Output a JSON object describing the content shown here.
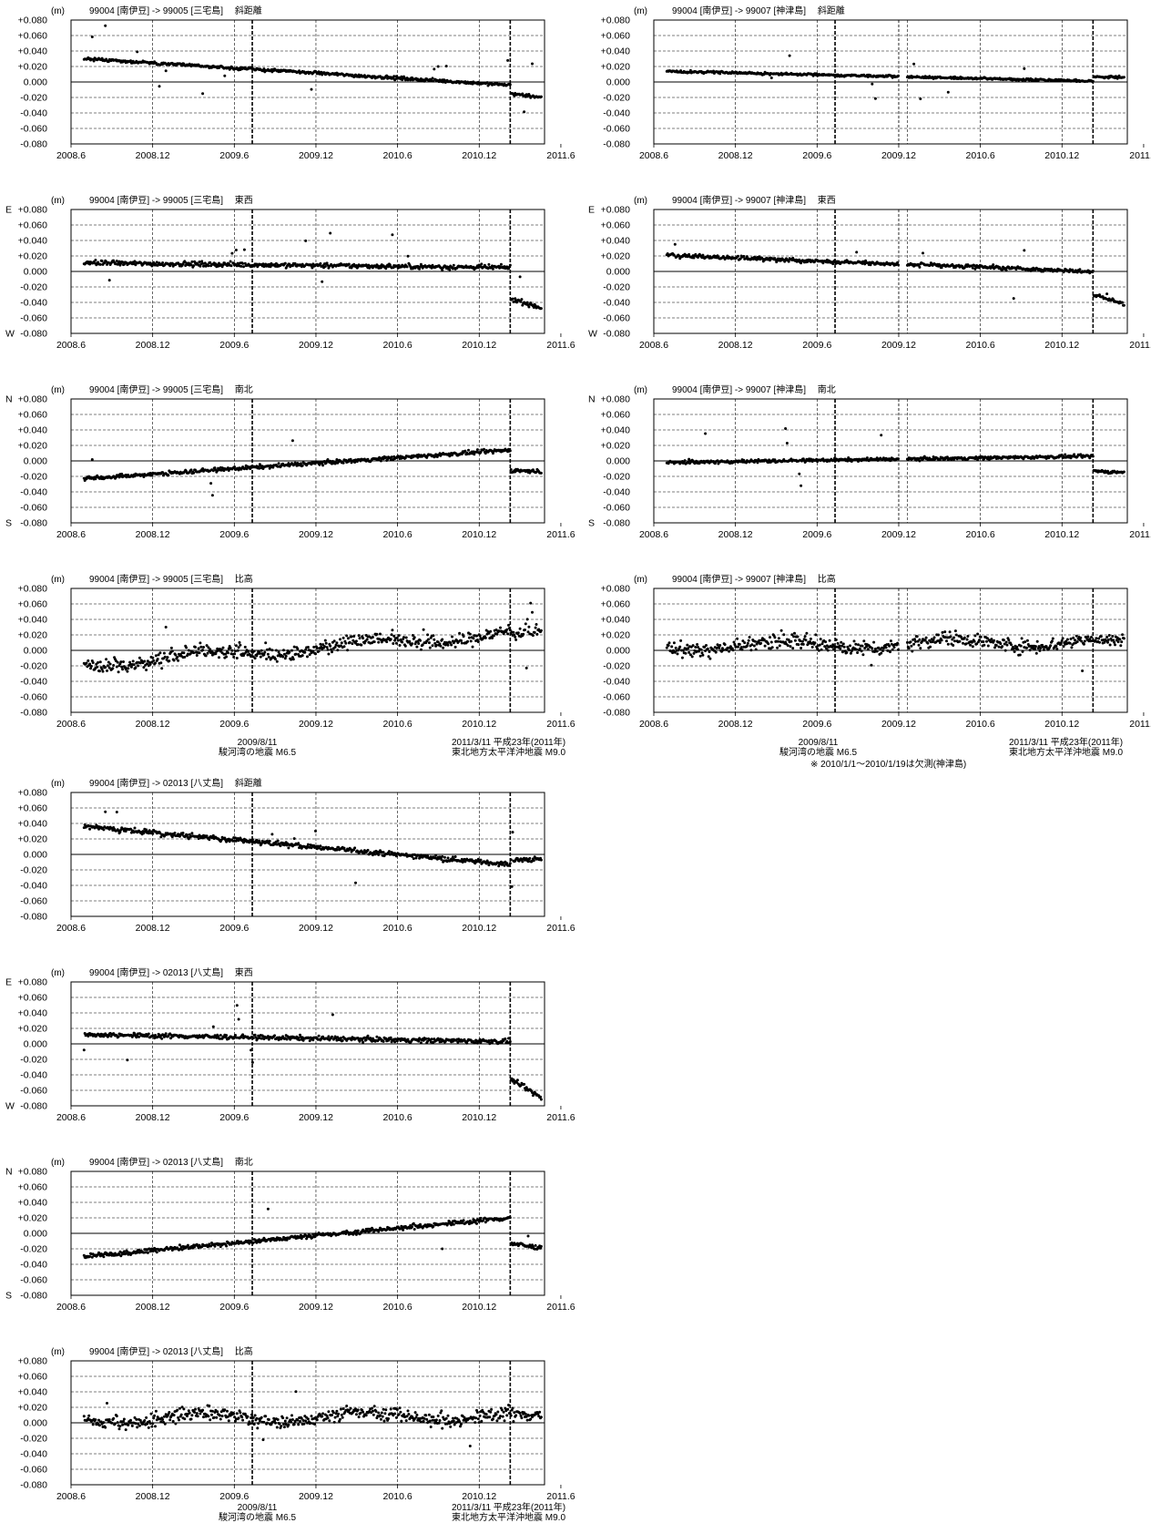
{
  "unit": "(m)",
  "y_ticks": [
    "+0.080",
    "+0.060",
    "+0.040",
    "+0.020",
    "0.000",
    "-0.020",
    "-0.040",
    "-0.060",
    "-0.080"
  ],
  "x_ticks": [
    "2008.6",
    "2008.12",
    "2009.6",
    "2009.12",
    "2010.6",
    "2010.12",
    "2011.6"
  ],
  "dir_labels": {
    "east": "E",
    "west": "W",
    "north": "N",
    "south": "S"
  },
  "event_notes": {
    "suruga": {
      "date": "2009/8/11",
      "name": "駿河湾の地震  M6.5"
    },
    "tohoku": {
      "date": "2011/3/11  平成23年(2011年)",
      "name": "東北地方太平洋沖地震  M9.0"
    }
  },
  "gap_note": "※ 2010/1/1～2010/1/19は欠測(神津島)",
  "colors": {
    "ink": "#000000",
    "background": "#ffffff"
  },
  "chart_data": [
    {
      "id": "p0",
      "type": "scatter",
      "title": "99004 [南伊豆] -> 99005 [三宅島]　 斜距離",
      "component": "slope",
      "start_y": 0.03,
      "end_y": -0.004,
      "step": -0.011,
      "post_slope": -0.005,
      "noise": 0.002,
      "ylim": [
        -0.08,
        0.08
      ],
      "xlim": [
        2008.5,
        2011.4
      ],
      "gap": false,
      "events": [
        2009.61,
        2011.19
      ]
    },
    {
      "id": "p1",
      "type": "scatter",
      "title": "99004 [南伊豆] -> 99007 [神津島]　 斜距離",
      "component": "slope",
      "start_y": 0.014,
      "end_y": 0.001,
      "step": 0.006,
      "post_slope": -0.001,
      "noise": 0.0015,
      "ylim": [
        -0.08,
        0.08
      ],
      "xlim": [
        2008.5,
        2011.4
      ],
      "gap": true,
      "events": [
        2009.61,
        2011.19
      ]
    },
    {
      "id": "p2",
      "type": "scatter",
      "title": "99004 [南伊豆] -> 99005 [三宅島]　 東西",
      "component": "ew",
      "start_y": 0.011,
      "end_y": 0.005,
      "step": -0.04,
      "post_slope": -0.012,
      "noise": 0.003,
      "ylim": [
        -0.08,
        0.08
      ],
      "xlim": [
        2008.5,
        2011.4
      ],
      "gap": false,
      "events": [
        2009.61,
        2011.19
      ]
    },
    {
      "id": "p3",
      "type": "scatter",
      "title": "99004 [南伊豆] -> 99007 [神津島]　 東西",
      "component": "ew",
      "start_y": 0.021,
      "end_y": 0.0,
      "step": -0.03,
      "post_slope": -0.012,
      "noise": 0.0025,
      "ylim": [
        -0.08,
        0.08
      ],
      "xlim": [
        2008.5,
        2011.4
      ],
      "gap": true,
      "events": [
        2009.61,
        2011.19
      ]
    },
    {
      "id": "p4",
      "type": "scatter",
      "title": "99004 [南伊豆] -> 99005 [三宅島]　 南北",
      "component": "ns",
      "start_y": -0.023,
      "end_y": 0.014,
      "step": -0.026,
      "post_slope": -0.002,
      "noise": 0.0025,
      "ylim": [
        -0.08,
        0.08
      ],
      "xlim": [
        2008.5,
        2011.4
      ],
      "gap": false,
      "events": [
        2009.61,
        2011.19
      ]
    },
    {
      "id": "p5",
      "type": "scatter",
      "title": "99004 [南伊豆] -> 99007 [神津島]　 南北",
      "component": "ns",
      "start_y": -0.002,
      "end_y": 0.006,
      "step": -0.019,
      "post_slope": -0.002,
      "noise": 0.002,
      "ylim": [
        -0.08,
        0.08
      ],
      "xlim": [
        2008.5,
        2011.4
      ],
      "gap": true,
      "events": [
        2009.61,
        2011.19
      ]
    },
    {
      "id": "p6",
      "type": "scatter",
      "title": "99004 [南伊豆] -> 99005 [三宅島]　 比高",
      "component": "height",
      "start_y": -0.018,
      "end_y": 0.022,
      "step": 0.0,
      "post_slope": 0.002,
      "noise": 0.009,
      "ylim": [
        -0.08,
        0.08
      ],
      "xlim": [
        2008.5,
        2011.4
      ],
      "gap": false,
      "events": [
        2009.61,
        2011.19
      ]
    },
    {
      "id": "p7",
      "type": "scatter",
      "title": "99004 [南伊豆] -> 99007 [神津島]　 比高",
      "component": "height",
      "start_y": 0.005,
      "end_y": 0.012,
      "step": 0.0,
      "post_slope": 0.002,
      "noise": 0.009,
      "ylim": [
        -0.08,
        0.08
      ],
      "xlim": [
        2008.5,
        2011.4
      ],
      "gap": true,
      "events": [
        2009.61,
        2011.19
      ]
    },
    {
      "id": "p8",
      "type": "scatter",
      "title": "99004 [南伊豆] -> 02013 [八丈島]　 斜距離",
      "component": "slope",
      "start_y": 0.036,
      "end_y": -0.013,
      "step": 0.005,
      "post_slope": 0.002,
      "noise": 0.003,
      "ylim": [
        -0.08,
        0.08
      ],
      "xlim": [
        2008.5,
        2011.4
      ],
      "gap": false,
      "events": [
        2009.61,
        2011.19
      ]
    },
    {
      "id": "p9",
      "type": "scatter",
      "title": "99004 [南伊豆] -> 02013 [八丈島]　 東西",
      "component": "ew",
      "start_y": 0.012,
      "end_y": 0.003,
      "step": -0.048,
      "post_slope": -0.025,
      "noise": 0.003,
      "ylim": [
        -0.08,
        0.08
      ],
      "xlim": [
        2008.5,
        2011.4
      ],
      "gap": false,
      "events": [
        2009.61,
        2011.19
      ]
    },
    {
      "id": "p10",
      "type": "scatter",
      "title": "99004 [南伊豆] -> 02013 [八丈島]　 南北",
      "component": "ns",
      "start_y": -0.03,
      "end_y": 0.02,
      "step": -0.033,
      "post_slope": -0.006,
      "noise": 0.003,
      "ylim": [
        -0.08,
        0.08
      ],
      "xlim": [
        2008.5,
        2011.4
      ],
      "gap": false,
      "events": [
        2009.61,
        2011.19
      ]
    },
    {
      "id": "p11",
      "type": "scatter",
      "title": "99004 [南伊豆] -> 02013 [八丈島]　 比高",
      "component": "height",
      "start_y": 0.005,
      "end_y": 0.01,
      "step": 0.0,
      "post_slope": 0.001,
      "noise": 0.009,
      "ylim": [
        -0.08,
        0.08
      ],
      "xlim": [
        2008.5,
        2011.4
      ],
      "gap": false,
      "events": [
        2009.61,
        2011.19
      ]
    }
  ]
}
